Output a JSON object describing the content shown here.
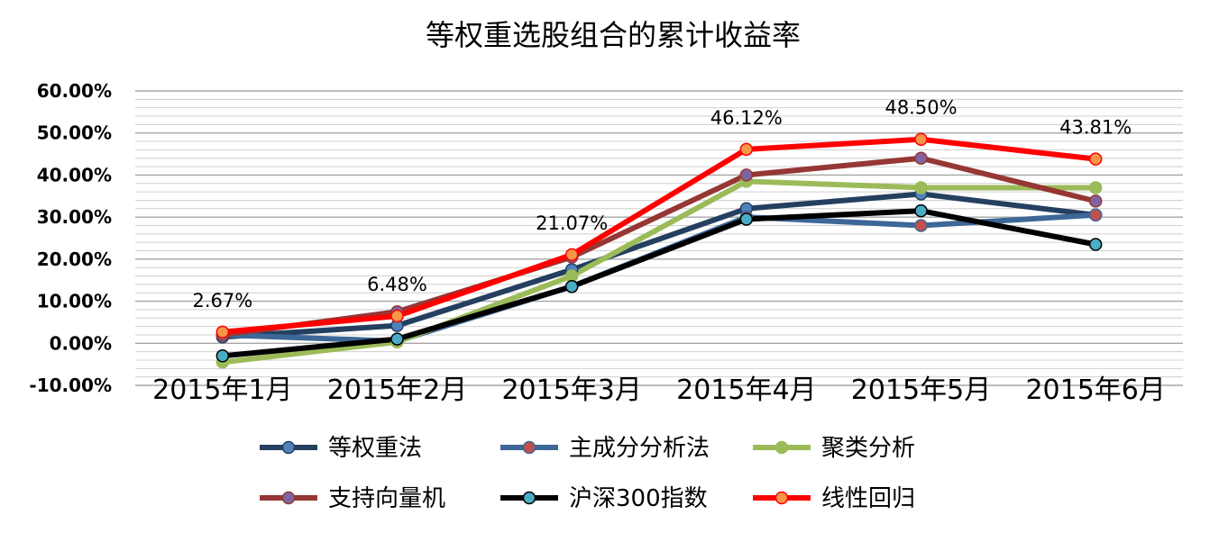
{
  "chart_data": {
    "type": "line",
    "title": "等权重选股组合的累计收益率",
    "categories": [
      "2015年1月",
      "2015年2月",
      "2015年3月",
      "2015年4月",
      "2015年5月",
      "2015年6月"
    ],
    "yticks": [
      "60.00%",
      "50.00%",
      "40.00%",
      "30.00%",
      "20.00%",
      "10.00%",
      "0.00%",
      "-10.00%"
    ],
    "ylim": [
      -10,
      60
    ],
    "unit": "%",
    "grid": true,
    "legend_position": "bottom",
    "series": [
      {
        "name": "等权重法",
        "line_color": "#243f60",
        "marker_color": "#4f81bd",
        "line_width": 6,
        "values": [
          1.5,
          4.2,
          17.5,
          32.0,
          35.5,
          30.5
        ]
      },
      {
        "name": "主成分分析法",
        "line_color": "#3d6797",
        "marker_color": "#c0504d",
        "line_width": 6,
        "values": [
          2.0,
          0.5,
          13.5,
          30.0,
          28.0,
          30.5
        ]
      },
      {
        "name": "聚类分析",
        "line_color": "#9bbb59",
        "marker_color": "#9bbb59",
        "line_width": 6,
        "values": [
          -4.5,
          0.3,
          16.0,
          38.5,
          37.0,
          37.0
        ]
      },
      {
        "name": "支持向量机",
        "line_color": "#953735",
        "marker_color": "#8064a2",
        "line_width": 6,
        "values": [
          2.0,
          7.5,
          20.5,
          40.0,
          44.0,
          33.8
        ]
      },
      {
        "name": "沪深300指数",
        "line_color": "#000000",
        "marker_color": "#4bacc6",
        "line_width": 6,
        "values": [
          -3.0,
          1.0,
          13.5,
          29.5,
          31.5,
          23.5
        ]
      },
      {
        "name": "线性回归",
        "line_color": "#ff0000",
        "marker_color": "#f79646",
        "line_width": 6,
        "values": [
          2.67,
          6.48,
          21.07,
          46.12,
          48.5,
          43.81
        ]
      }
    ],
    "data_labels": [
      {
        "series": "线性回归",
        "index": 0,
        "text": "2.67%"
      },
      {
        "series": "线性回归",
        "index": 1,
        "text": "6.48%"
      },
      {
        "series": "线性回归",
        "index": 2,
        "text": "21.07%"
      },
      {
        "series": "线性回归",
        "index": 3,
        "text": "46.12%"
      },
      {
        "series": "线性回归",
        "index": 4,
        "text": "48.50%"
      },
      {
        "series": "线性回归",
        "index": 5,
        "text": "43.81%"
      }
    ]
  }
}
